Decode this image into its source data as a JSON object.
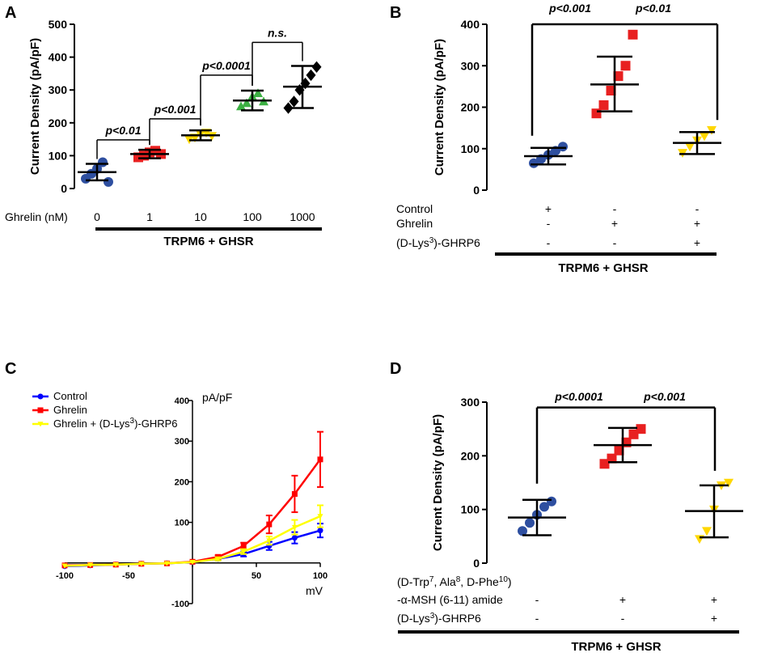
{
  "chart_data": [
    {
      "panel": "A",
      "type": "scatter",
      "ylabel": "Current Density (pA/pF)",
      "ylim": [
        0,
        500
      ],
      "yticks": [
        0,
        100,
        200,
        300,
        400,
        500
      ],
      "x_row_label": "Ghrelin (nM)",
      "categories": [
        "0",
        "1",
        "10",
        "100",
        "1000"
      ],
      "colors": [
        "#2e4fa0",
        "#e82020",
        "#ffd700",
        "#3cb043",
        "#000000"
      ],
      "markers": [
        "circle",
        "square",
        "triangle-down",
        "triangle-up",
        "diamond"
      ],
      "means": [
        50,
        105,
        162,
        268,
        310
      ],
      "sd_low": [
        25,
        92,
        147,
        238,
        245
      ],
      "sd_high": [
        75,
        118,
        177,
        298,
        373
      ],
      "points": [
        [
          30,
          45,
          60,
          80,
          20
        ],
        [
          95,
          100,
          110,
          115,
          105
        ],
        [
          150,
          155,
          165,
          170,
          160
        ],
        [
          250,
          260,
          280,
          290,
          265
        ],
        [
          245,
          265,
          300,
          320,
          345,
          370
        ]
      ],
      "comparisons": [
        {
          "label": "p<0.01",
          "from": 0,
          "to": 1,
          "y": 148
        },
        {
          "label": "p<0.001",
          "from": 1,
          "to": 2,
          "y": 212
        },
        {
          "label": "p<0.0001",
          "from": 2,
          "to": 3,
          "y": 345
        },
        {
          "label": "n.s.",
          "from": 3,
          "to": 4,
          "y": 445
        }
      ],
      "bottom_label": "TRPM6 + GHSR"
    },
    {
      "panel": "B",
      "type": "scatter",
      "ylabel": "Current Density (pA/pF)",
      "ylim": [
        0,
        400
      ],
      "yticks": [
        0,
        100,
        200,
        300,
        400
      ],
      "colors": [
        "#2e4fa0",
        "#e82020",
        "#ffd700"
      ],
      "markers": [
        "circle",
        "square",
        "triangle-down"
      ],
      "means": [
        82,
        255,
        114
      ],
      "sd_low": [
        62,
        190,
        87
      ],
      "sd_high": [
        102,
        322,
        140
      ],
      "points": [
        [
          65,
          75,
          85,
          95,
          105
        ],
        [
          185,
          205,
          240,
          275,
          300,
          375
        ],
        [
          90,
          105,
          120,
          130,
          145
        ]
      ],
      "comparisons": [
        {
          "label": "p<0.001",
          "from": 0,
          "to": 1,
          "y": 400
        },
        {
          "label": "p<0.01",
          "from": 1,
          "to": 2,
          "y": 400
        }
      ],
      "conditions": [
        {
          "label": "Control",
          "sup": "",
          "tail": "",
          "marks": [
            "+",
            "-",
            "-"
          ]
        },
        {
          "label": "Ghrelin",
          "sup": "",
          "tail": "",
          "marks": [
            "-",
            "+",
            "+"
          ]
        },
        {
          "label": "(D-Lys",
          "sup": "3",
          "tail": ")-GHRP6",
          "marks": [
            "-",
            "-",
            "+"
          ]
        }
      ],
      "bottom_label": "TRPM6 + GHSR"
    },
    {
      "panel": "C",
      "type": "line",
      "xlabel": "mV",
      "ylabel": "pA/pF",
      "xlim": [
        -100,
        100
      ],
      "ylim": [
        -100,
        400
      ],
      "xticks": [
        -100,
        -50,
        0,
        50,
        100
      ],
      "yticks": [
        -100,
        100,
        200,
        300,
        400
      ],
      "x": [
        -100,
        -80,
        -60,
        -40,
        -20,
        0,
        20,
        40,
        60,
        80,
        100
      ],
      "series": [
        {
          "name": "Control",
          "color": "#0000ff",
          "marker": "circle",
          "values": [
            -8,
            -6,
            -4,
            -2,
            -1,
            2,
            10,
            22,
            42,
            62,
            80
          ],
          "err": [
            2,
            2,
            2,
            2,
            2,
            3,
            4,
            6,
            10,
            14,
            17
          ]
        },
        {
          "name": "Ghrelin",
          "color": "#ff0000",
          "marker": "square",
          "values": [
            -6,
            -5,
            -4,
            -2,
            -1,
            3,
            15,
            42,
            95,
            170,
            255
          ],
          "err": [
            2,
            2,
            2,
            2,
            2,
            3,
            4,
            8,
            22,
            45,
            68
          ]
        },
        {
          "name": "Ghrelin + (D-Lys",
          "name_sup": "3",
          "name_tail": ")-GHRP6",
          "color": "#ffff00",
          "marker": "triangle-down",
          "values": [
            -7,
            -5,
            -4,
            -2,
            -1,
            2,
            10,
            28,
            55,
            88,
            115
          ],
          "err": [
            2,
            2,
            2,
            2,
            2,
            3,
            4,
            6,
            10,
            18,
            27
          ]
        }
      ]
    },
    {
      "panel": "D",
      "type": "scatter",
      "ylabel": "Current  Density (pA/pF)",
      "ylim": [
        0,
        300
      ],
      "yticks": [
        0,
        100,
        200,
        300
      ],
      "colors": [
        "#2e4fa0",
        "#e82020",
        "#ffd700"
      ],
      "markers": [
        "circle",
        "square",
        "triangle-down"
      ],
      "means": [
        85,
        220,
        97
      ],
      "sd_low": [
        52,
        188,
        48
      ],
      "sd_high": [
        118,
        252,
        145
      ],
      "points": [
        [
          60,
          75,
          90,
          105,
          115
        ],
        [
          185,
          195,
          210,
          225,
          240,
          250
        ],
        [
          45,
          60,
          100,
          145,
          150
        ]
      ],
      "comparisons": [
        {
          "label": "p<0.0001",
          "from": 0,
          "to": 1,
          "y": 290
        },
        {
          "label": "p<0.001",
          "from": 1,
          "to": 2,
          "y": 290
        }
      ],
      "conditions": [
        {
          "lines": [
            {
              "parts": [
                [
                  "(D-Trp",
                  ""
                ],
                [
                  "7",
                  "sup"
                ],
                [
                  ", Ala",
                  ""
                ],
                [
                  "8",
                  "sup"
                ],
                [
                  ", D-Phe",
                  ""
                ],
                [
                  "10",
                  "sup"
                ],
                [
                  ")",
                  ""
                ]
              ]
            },
            {
              "parts": [
                [
                  "-α-MSH (6-11) amide",
                  ""
                ]
              ]
            }
          ],
          "marks": [
            "-",
            "+",
            "+"
          ]
        },
        {
          "lines": [
            {
              "parts": [
                [
                  "(D-Lys",
                  ""
                ],
                [
                  "3",
                  "sup"
                ],
                [
                  ")-GHRP6",
                  ""
                ]
              ]
            }
          ],
          "marks": [
            "-",
            "-",
            "+"
          ]
        }
      ],
      "bottom_label": "TRPM6 + GHSR"
    }
  ]
}
